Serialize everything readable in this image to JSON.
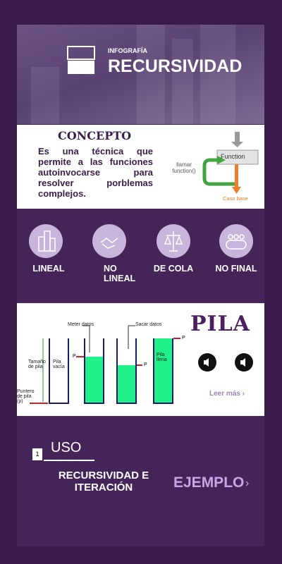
{
  "header": {
    "label": "INFOGRAFÍA",
    "title": "RECURSIVIDAD"
  },
  "concept": {
    "title": "CONCEPTO",
    "text": "Es una técnica que permite a las funciones autoinvocarse para resolver porblemas complejos.",
    "diagram": {
      "box": "Function",
      "call": "llamar function()",
      "base": "Caso base"
    }
  },
  "types": [
    "LINEAL",
    "NO LINEAL",
    "DE COLA",
    "NO FINAL"
  ],
  "pila": {
    "title": "PILA",
    "link": "Leer más ›",
    "diagram": {
      "push": "Meter datos",
      "pop": "Sacar datos",
      "size": "Tamaño de pila",
      "empty": "Pila vacía",
      "full": "Pila llena",
      "pointer": "Puntero de pila (p)",
      "p1": "P",
      "p2": "P",
      "p3": "P"
    }
  },
  "uso": {
    "number": "1",
    "title": "USO",
    "subtitle": "RECURSIVIDAD E ITERACIÓN",
    "link": "EJEMPLO",
    "arrow": "›"
  }
}
